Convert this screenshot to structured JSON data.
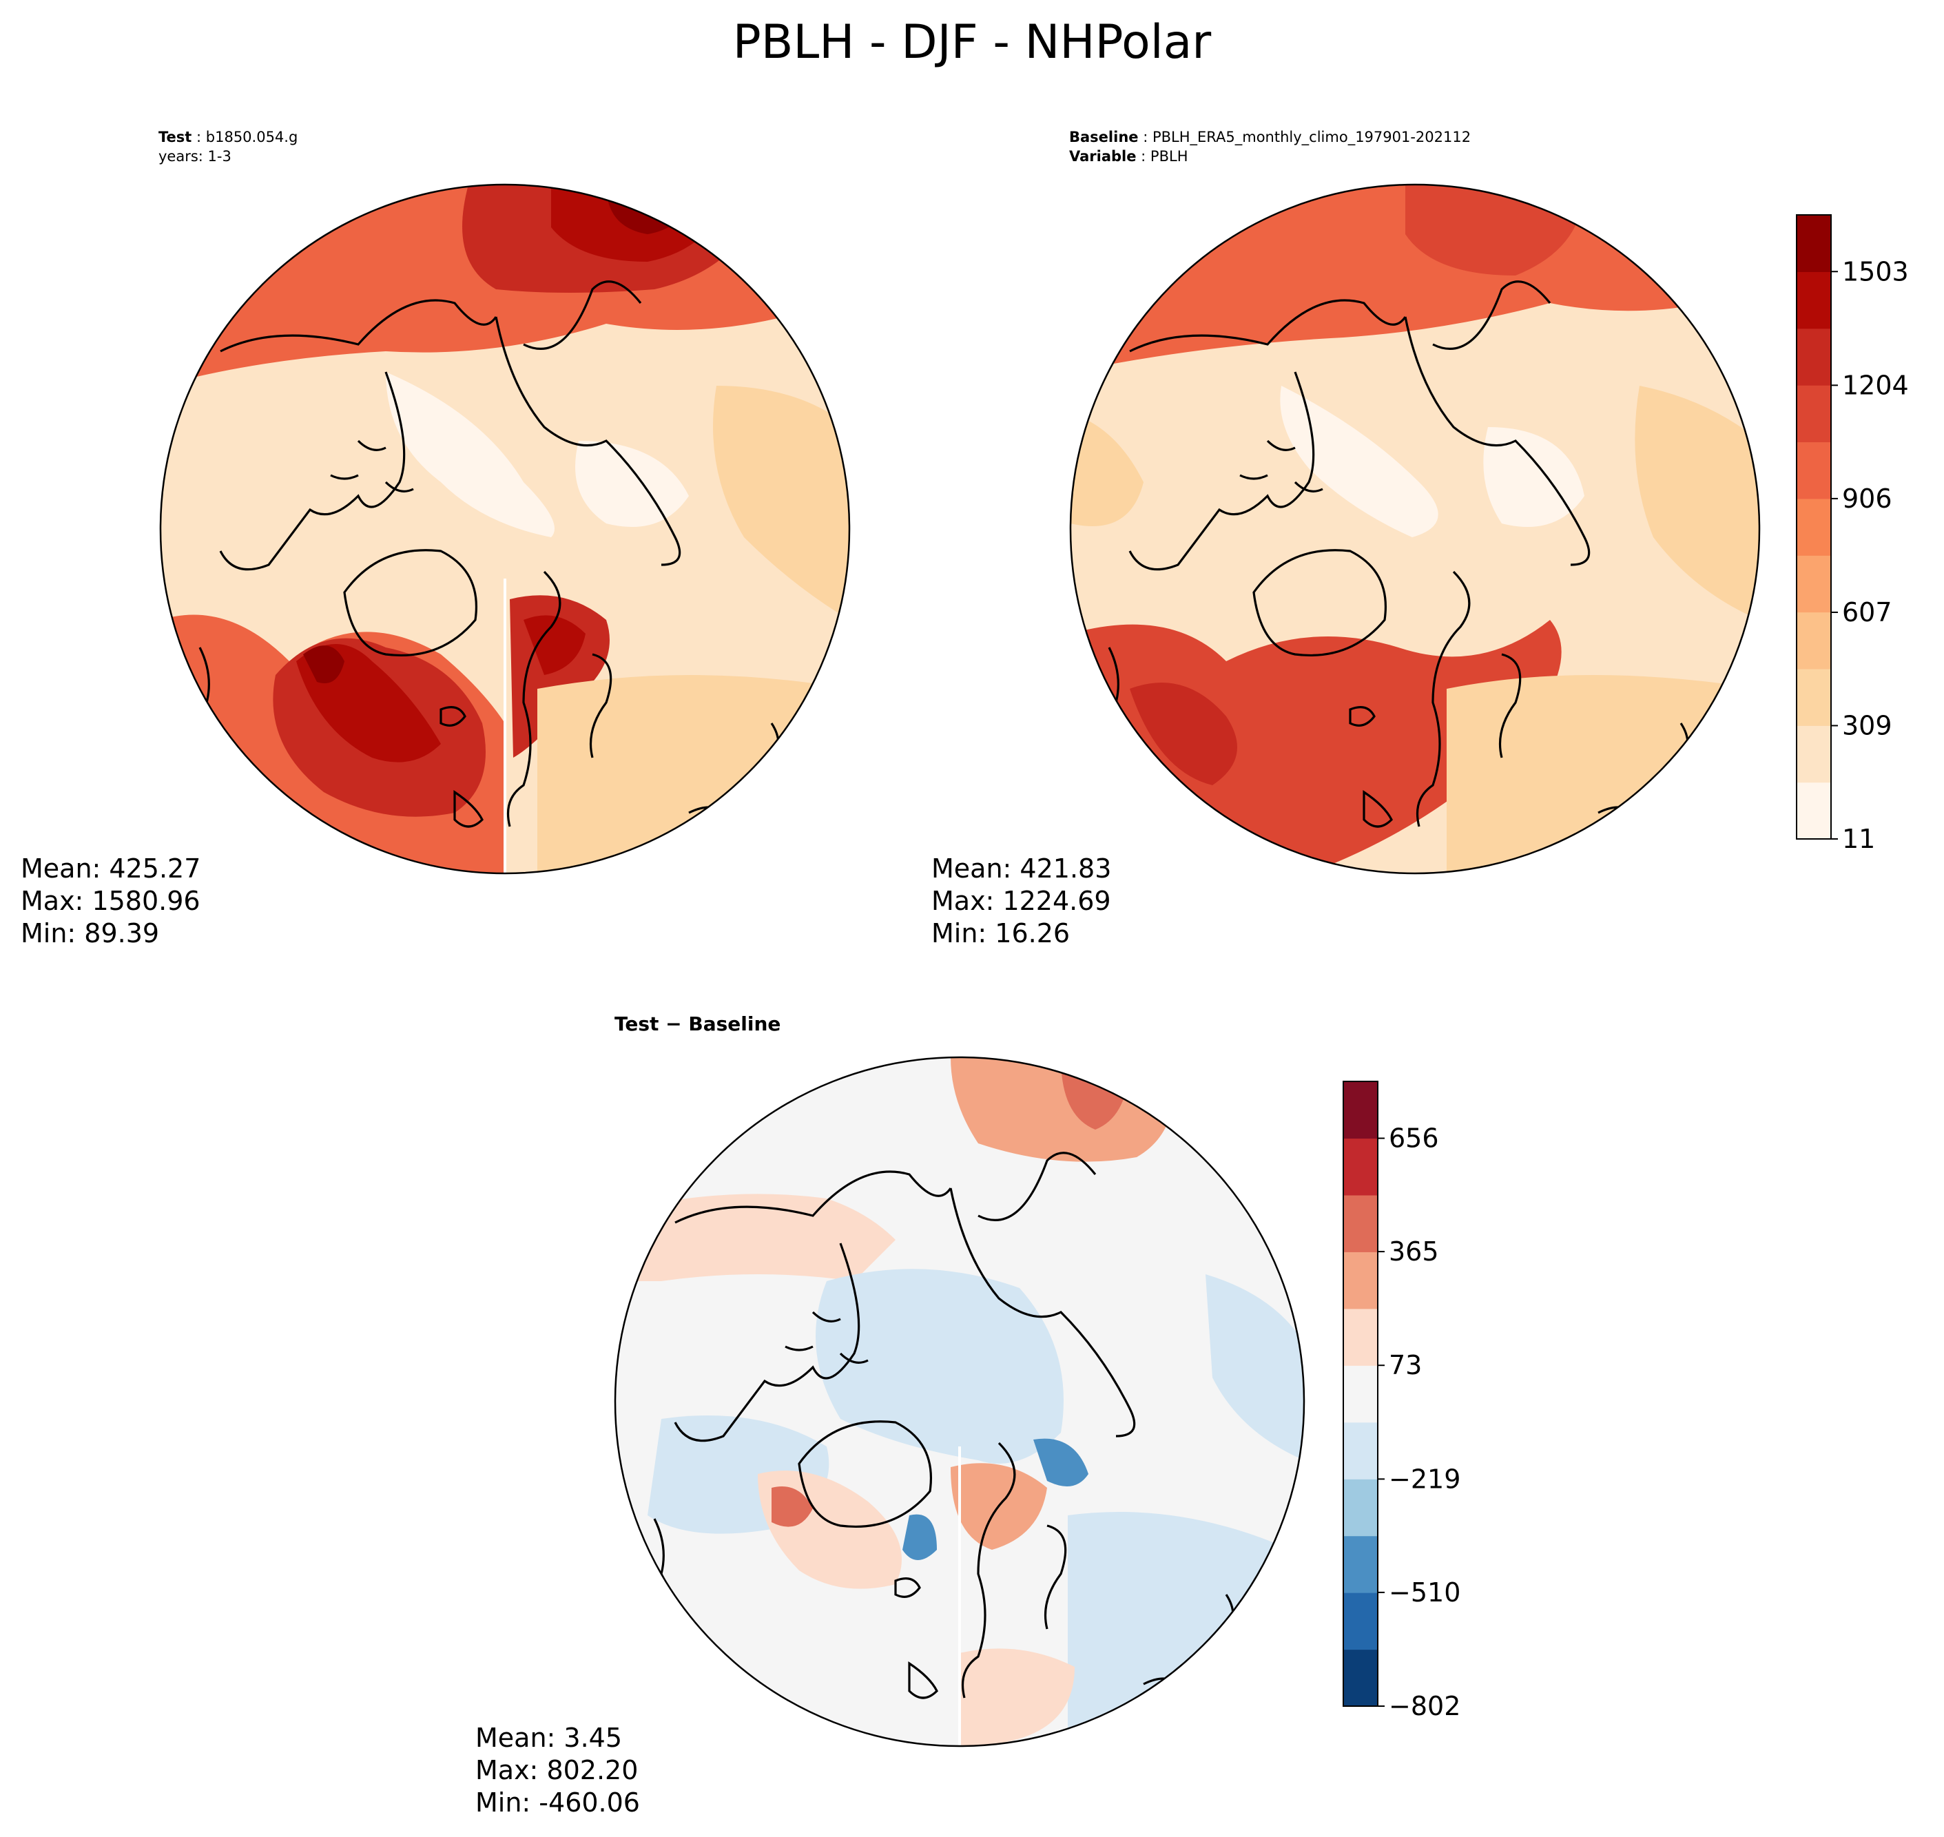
{
  "figure_title": "PBLH - DJF - NHPolar",
  "panels": {
    "test": {
      "label": "Test",
      "name": "b1850.054.g",
      "years_line": "years: 1-3",
      "mean": "Mean: 425.27",
      "max": "Max: 1580.96",
      "min": "Min: 89.39"
    },
    "baseline": {
      "label": "Baseline",
      "name": "PBLH_ERA5_monthly_climo_197901-202112",
      "variable_label": "Variable",
      "variable": "PBLH",
      "mean": "Mean: 421.83",
      "max": "Max: 1224.69",
      "min": "Min: 16.26"
    },
    "difference": {
      "title": "Test − Baseline",
      "mean": "Mean:  3.45",
      "max": "Max: 802.20",
      "min": "Min: -460.06"
    }
  },
  "colors": {
    "seq": [
      "#fff5eb",
      "#fde4c6",
      "#fcd5a2",
      "#fcc189",
      "#fba46d",
      "#f88552",
      "#ee6443",
      "#dc4632",
      "#c72a20",
      "#b20a05",
      "#8e0000"
    ],
    "div": [
      "#0b3e77",
      "#2468ab",
      "#4b8fc3",
      "#9fcae1",
      "#d4e6f3",
      "#f5f5f5",
      "#fcdccb",
      "#f3a584",
      "#df6c58",
      "#c2292d",
      "#810d23"
    ]
  },
  "chart_data": [
    {
      "type": "heatmap",
      "title": "Test: b1850.054.g (years: 1-3)",
      "projection": "North Polar Stereographic",
      "variable": "PBLH",
      "season": "DJF",
      "stats": {
        "mean": 425.27,
        "max": 1580.96,
        "min": 89.39
      },
      "colorbar": "shared with baseline"
    },
    {
      "type": "heatmap",
      "title": "Baseline: PBLH_ERA5_monthly_climo_197901-202112",
      "projection": "North Polar Stereographic",
      "variable": "PBLH",
      "season": "DJF",
      "stats": {
        "mean": 421.83,
        "max": 1224.69,
        "min": 16.26
      },
      "colorbar": {
        "range": [
          11,
          1652
        ],
        "levels": 11,
        "ticks": [
          11,
          309,
          607,
          906,
          1204,
          1503
        ],
        "tick_labels": [
          "11",
          "309",
          "607",
          "906",
          "1204",
          "1503"
        ]
      }
    },
    {
      "type": "heatmap",
      "title": "Test − Baseline",
      "projection": "North Polar Stereographic",
      "variable": "PBLH",
      "season": "DJF",
      "stats": {
        "mean": 3.45,
        "max": 802.2,
        "min": -460.06
      },
      "colorbar": {
        "range": [
          -802,
          802
        ],
        "levels": 11,
        "ticks": [
          -802,
          -510,
          -219,
          73,
          365,
          656
        ],
        "tick_labels": [
          "−802",
          "−510",
          "−219",
          "73",
          "365",
          "656"
        ]
      }
    }
  ]
}
